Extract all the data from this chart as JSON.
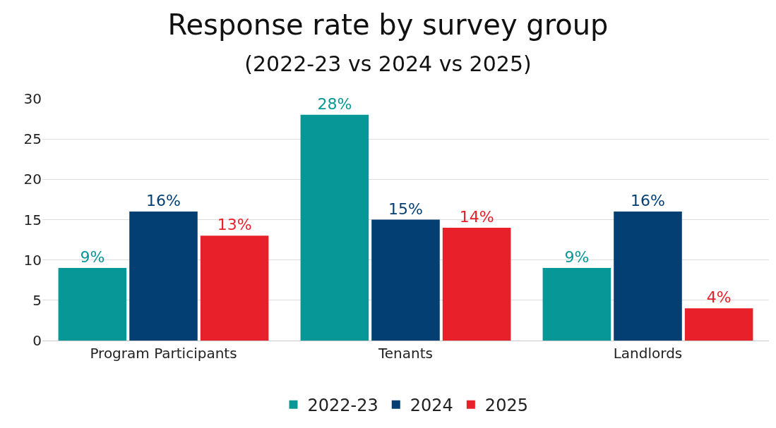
{
  "chart_data": {
    "type": "bar",
    "title": "Response rate by survey group",
    "subtitle": "(2022-23 vs 2024 vs 2025)",
    "categories": [
      "Program Participants",
      "Tenants",
      "Landlords"
    ],
    "series": [
      {
        "name": "2022-23",
        "color": "#079797",
        "values": [
          9,
          28,
          9
        ],
        "value_labels": [
          "9%",
          "28%",
          "9%"
        ]
      },
      {
        "name": "2024",
        "color": "#033f73",
        "values": [
          16,
          15,
          16
        ],
        "value_labels": [
          "16%",
          "15%",
          "16%"
        ]
      },
      {
        "name": "2025",
        "color": "#e8202a",
        "values": [
          13,
          14,
          4
        ],
        "value_labels": [
          "13%",
          "14%",
          "4%"
        ]
      }
    ],
    "ylim": [
      0,
      30
    ],
    "yticks": [
      0,
      5,
      10,
      15,
      20,
      25,
      30
    ],
    "grid": "y",
    "legend": "bottom"
  }
}
